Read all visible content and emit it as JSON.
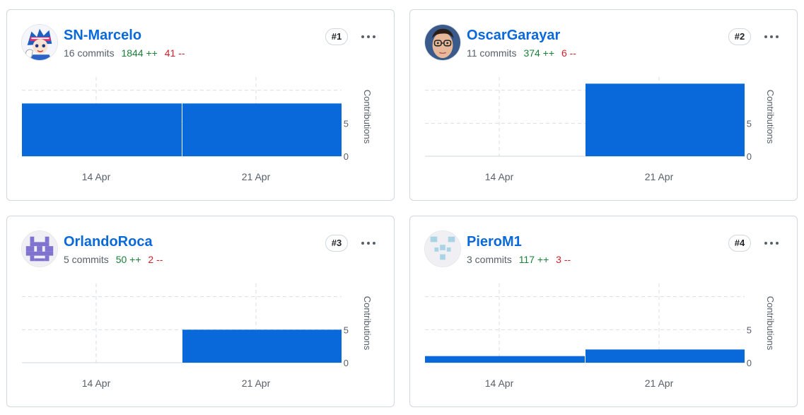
{
  "cards": [
    {
      "username": "SN-Marcelo",
      "commits": "16 commits",
      "additions": "1844 ++",
      "deletions": "41 --",
      "rank": "#1",
      "avatar": "anime-character-avatar",
      "chart_data": {
        "type": "area",
        "x": [
          "14 Apr",
          "21 Apr"
        ],
        "values": [
          8,
          8
        ],
        "ylabel": "Contributions",
        "y_ticks": [
          "5",
          "0"
        ],
        "ylim": [
          0,
          12
        ],
        "color": "#0969da"
      }
    },
    {
      "username": "OscarGarayar",
      "commits": "11 commits",
      "additions": "374 ++",
      "deletions": "6 --",
      "rank": "#2",
      "avatar": "photo-avatar",
      "chart_data": {
        "type": "area",
        "x": [
          "14 Apr",
          "21 Apr"
        ],
        "values": [
          0,
          11
        ],
        "ylabel": "Contributions",
        "y_ticks": [
          "5",
          "0"
        ],
        "ylim": [
          0,
          12
        ],
        "color": "#0969da"
      }
    },
    {
      "username": "OrlandoRoca",
      "commits": "5 commits",
      "additions": "50 ++",
      "deletions": "2 --",
      "rank": "#3",
      "avatar": "identicon-purple",
      "chart_data": {
        "type": "area",
        "x": [
          "14 Apr",
          "21 Apr"
        ],
        "values": [
          0,
          5
        ],
        "ylabel": "Contributions",
        "y_ticks": [
          "5",
          "0"
        ],
        "ylim": [
          0,
          12
        ],
        "color": "#0969da"
      }
    },
    {
      "username": "PieroM1",
      "commits": "3 commits",
      "additions": "117 ++",
      "deletions": "3 --",
      "rank": "#4",
      "avatar": "identicon-light-blue",
      "chart_data": {
        "type": "area",
        "x": [
          "14 Apr",
          "21 Apr"
        ],
        "values": [
          1,
          2
        ],
        "ylabel": "Contributions",
        "y_ticks": [
          "5",
          "0"
        ],
        "ylim": [
          0,
          12
        ],
        "color": "#0969da"
      }
    }
  ]
}
